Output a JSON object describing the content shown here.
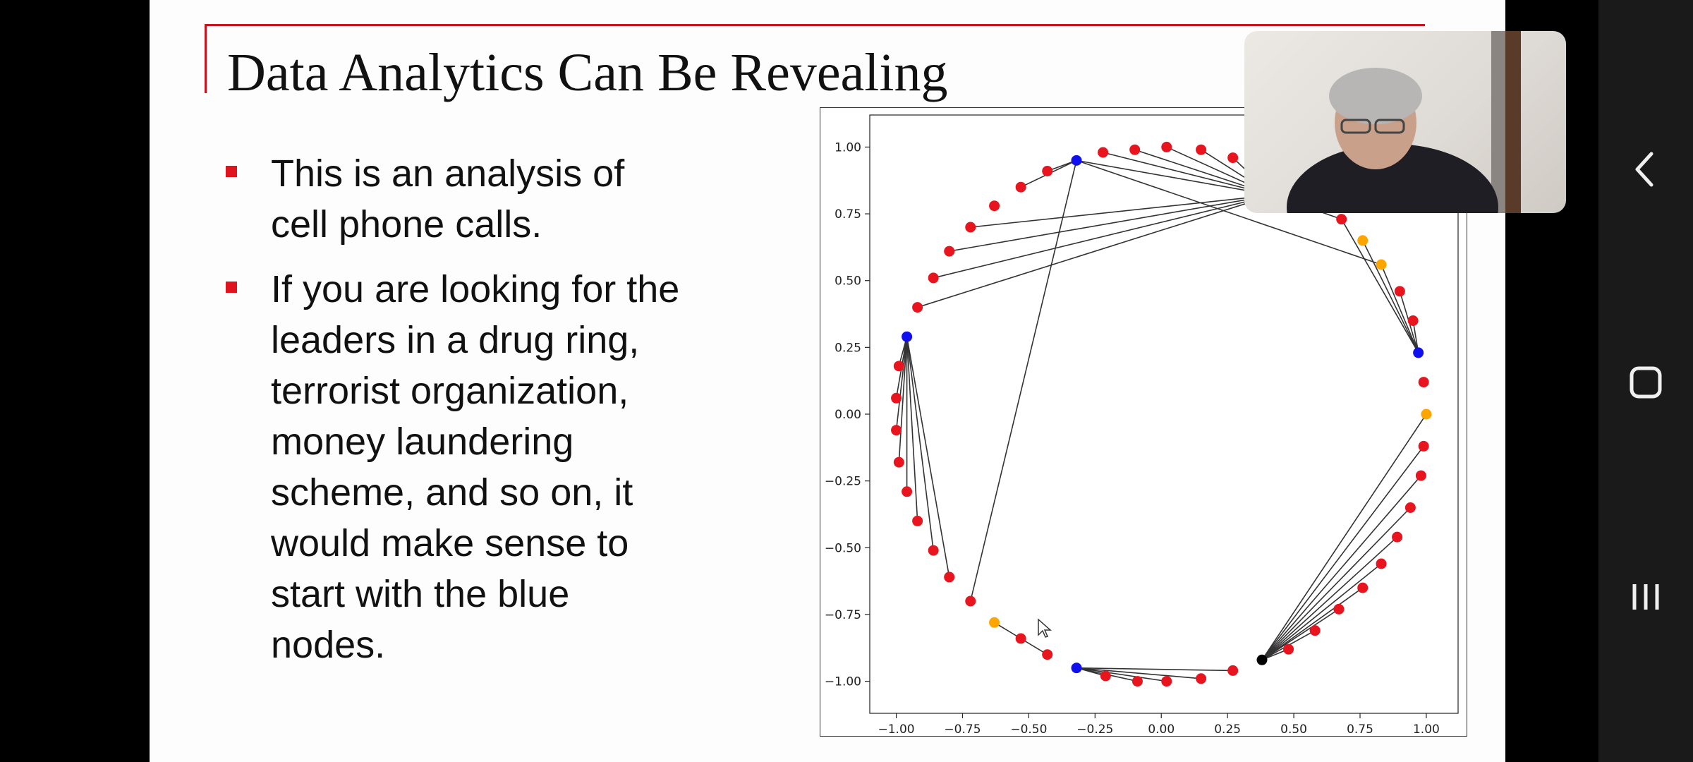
{
  "slide": {
    "title": "Data Analytics Can Be Revealing",
    "bullets": [
      {
        "text": "This is an analysis of\ncell phone calls."
      },
      {
        "text": "If you are looking for the\nleaders in a drug ring,\nterrorist organization,\nmoney laundering\nscheme, and so on, it\nwould make sense to\nstart with the blue\nnodes."
      }
    ],
    "accent_color": "#c8141e"
  },
  "chart_data": {
    "type": "scatter",
    "title": "",
    "xlabel": "",
    "ylabel": "",
    "xlim": [
      -1.1,
      1.12
    ],
    "ylim": [
      -1.12,
      1.12
    ],
    "xticks": [
      -1.0,
      -0.75,
      -0.5,
      -0.25,
      0.0,
      0.25,
      0.5,
      0.75,
      1.0
    ],
    "yticks": [
      -1.0,
      -0.75,
      -0.5,
      -0.25,
      0.0,
      0.25,
      0.5,
      0.75,
      1.0
    ],
    "xtick_labels": [
      "−1.00",
      "−0.75",
      "−0.50",
      "−0.25",
      "0.00",
      "0.25",
      "0.50",
      "0.75",
      "1.00"
    ],
    "ytick_labels": [
      "−1.00",
      "−0.75",
      "−0.50",
      "−0.25",
      "0.00",
      "0.25",
      "0.50",
      "0.75",
      "1.00"
    ],
    "grid": false,
    "node_colors": {
      "red": "#e8141e",
      "blue": "#1010ee",
      "orange": "#ffa500",
      "black": "#000000"
    },
    "nodes": [
      {
        "id": "r1",
        "x": -0.22,
        "y": 0.98,
        "color": "red"
      },
      {
        "id": "r2",
        "x": -0.1,
        "y": 0.99,
        "color": "red"
      },
      {
        "id": "r3",
        "x": 0.02,
        "y": 1.0,
        "color": "red"
      },
      {
        "id": "r4",
        "x": 0.15,
        "y": 0.99,
        "color": "red"
      },
      {
        "id": "r5",
        "x": 0.27,
        "y": 0.96,
        "color": "red"
      },
      {
        "id": "hub_tr",
        "x": 0.42,
        "y": 0.82,
        "color": "red"
      },
      {
        "id": "r6",
        "x": 0.68,
        "y": 0.73,
        "color": "red"
      },
      {
        "id": "o1",
        "x": 0.76,
        "y": 0.65,
        "color": "orange"
      },
      {
        "id": "o2",
        "x": 0.83,
        "y": 0.56,
        "color": "orange"
      },
      {
        "id": "r7",
        "x": 0.9,
        "y": 0.46,
        "color": "red"
      },
      {
        "id": "r8",
        "x": 0.95,
        "y": 0.35,
        "color": "red"
      },
      {
        "id": "b_right",
        "x": 0.97,
        "y": 0.23,
        "color": "blue"
      },
      {
        "id": "r9",
        "x": 0.99,
        "y": 0.12,
        "color": "red"
      },
      {
        "id": "o3",
        "x": 1.0,
        "y": 0.0,
        "color": "orange"
      },
      {
        "id": "r10",
        "x": 0.99,
        "y": -0.12,
        "color": "red"
      },
      {
        "id": "r11",
        "x": 0.98,
        "y": -0.23,
        "color": "red"
      },
      {
        "id": "r12",
        "x": 0.94,
        "y": -0.35,
        "color": "red"
      },
      {
        "id": "r13",
        "x": 0.89,
        "y": -0.46,
        "color": "red"
      },
      {
        "id": "r14",
        "x": 0.83,
        "y": -0.56,
        "color": "red"
      },
      {
        "id": "r15",
        "x": 0.76,
        "y": -0.65,
        "color": "red"
      },
      {
        "id": "r16",
        "x": 0.67,
        "y": -0.73,
        "color": "red"
      },
      {
        "id": "r17",
        "x": 0.58,
        "y": -0.81,
        "color": "red"
      },
      {
        "id": "r18",
        "x": 0.48,
        "y": -0.88,
        "color": "red"
      },
      {
        "id": "k1",
        "x": 0.38,
        "y": -0.92,
        "color": "black"
      },
      {
        "id": "r19",
        "x": 0.27,
        "y": -0.96,
        "color": "red"
      },
      {
        "id": "r20",
        "x": 0.15,
        "y": -0.99,
        "color": "red"
      },
      {
        "id": "r21",
        "x": 0.02,
        "y": -1.0,
        "color": "red"
      },
      {
        "id": "r22",
        "x": -0.09,
        "y": -1.0,
        "color": "red"
      },
      {
        "id": "r23",
        "x": -0.21,
        "y": -0.98,
        "color": "red"
      },
      {
        "id": "b_bottom",
        "x": -0.32,
        "y": -0.95,
        "color": "blue"
      },
      {
        "id": "r24",
        "x": -0.43,
        "y": -0.9,
        "color": "red"
      },
      {
        "id": "r25",
        "x": -0.53,
        "y": -0.84,
        "color": "red"
      },
      {
        "id": "o4",
        "x": -0.63,
        "y": -0.78,
        "color": "orange"
      },
      {
        "id": "r26",
        "x": -0.72,
        "y": -0.7,
        "color": "red"
      },
      {
        "id": "r27",
        "x": -0.8,
        "y": -0.61,
        "color": "red"
      },
      {
        "id": "r28",
        "x": -0.86,
        "y": -0.51,
        "color": "red"
      },
      {
        "id": "r29",
        "x": -0.92,
        "y": -0.4,
        "color": "red"
      },
      {
        "id": "r30",
        "x": -0.96,
        "y": -0.29,
        "color": "red"
      },
      {
        "id": "r31",
        "x": -0.99,
        "y": -0.18,
        "color": "red"
      },
      {
        "id": "r32",
        "x": -1.0,
        "y": -0.06,
        "color": "red"
      },
      {
        "id": "r33",
        "x": -1.0,
        "y": 0.06,
        "color": "red"
      },
      {
        "id": "r34",
        "x": -0.99,
        "y": 0.18,
        "color": "red"
      },
      {
        "id": "b_left",
        "x": -0.96,
        "y": 0.29,
        "color": "blue"
      },
      {
        "id": "r35",
        "x": -0.92,
        "y": 0.4,
        "color": "red"
      },
      {
        "id": "r36",
        "x": -0.86,
        "y": 0.51,
        "color": "red"
      },
      {
        "id": "r37",
        "x": -0.8,
        "y": 0.61,
        "color": "red"
      },
      {
        "id": "r38",
        "x": -0.72,
        "y": 0.7,
        "color": "red"
      },
      {
        "id": "r39",
        "x": -0.63,
        "y": 0.78,
        "color": "red"
      },
      {
        "id": "r40",
        "x": -0.53,
        "y": 0.85,
        "color": "red"
      },
      {
        "id": "r41",
        "x": -0.43,
        "y": 0.91,
        "color": "red"
      },
      {
        "id": "b_top",
        "x": -0.32,
        "y": 0.95,
        "color": "blue"
      }
    ],
    "edges": [
      [
        "b_top",
        "r41"
      ],
      [
        "b_top",
        "r40"
      ],
      [
        "b_top",
        "r26"
      ],
      [
        "b_top",
        "hub_tr"
      ],
      [
        "b_top",
        "o2"
      ],
      [
        "hub_tr",
        "r1"
      ],
      [
        "hub_tr",
        "r2"
      ],
      [
        "hub_tr",
        "r3"
      ],
      [
        "hub_tr",
        "r4"
      ],
      [
        "hub_tr",
        "r5"
      ],
      [
        "hub_tr",
        "r38"
      ],
      [
        "hub_tr",
        "r37"
      ],
      [
        "hub_tr",
        "r36"
      ],
      [
        "hub_tr",
        "r35"
      ],
      [
        "hub_tr",
        "r6"
      ],
      [
        "b_right",
        "r6"
      ],
      [
        "b_right",
        "o1"
      ],
      [
        "b_right",
        "o2"
      ],
      [
        "b_right",
        "r7"
      ],
      [
        "b_right",
        "r8"
      ],
      [
        "b_left",
        "r34"
      ],
      [
        "b_left",
        "r33"
      ],
      [
        "b_left",
        "r32"
      ],
      [
        "b_left",
        "r31"
      ],
      [
        "b_left",
        "r30"
      ],
      [
        "b_left",
        "r29"
      ],
      [
        "b_left",
        "r28"
      ],
      [
        "b_left",
        "r27"
      ],
      [
        "k1",
        "o3"
      ],
      [
        "k1",
        "r10"
      ],
      [
        "k1",
        "r11"
      ],
      [
        "k1",
        "r12"
      ],
      [
        "k1",
        "r13"
      ],
      [
        "k1",
        "r14"
      ],
      [
        "k1",
        "r15"
      ],
      [
        "k1",
        "r16"
      ],
      [
        "k1",
        "r17"
      ],
      [
        "k1",
        "r18"
      ],
      [
        "b_bottom",
        "r19"
      ],
      [
        "b_bottom",
        "r20"
      ],
      [
        "b_bottom",
        "r21"
      ],
      [
        "b_bottom",
        "r22"
      ],
      [
        "b_bottom",
        "r23"
      ],
      [
        "o4",
        "r25"
      ],
      [
        "r25",
        "r24"
      ]
    ]
  },
  "webcam": {
    "icon": "person-video-icon"
  },
  "nav": {
    "back_icon": "chevron-left-icon",
    "home_icon": "rounded-square-home-icon",
    "recents_icon": "three-bars-recents-icon"
  },
  "colors": {
    "nav_bg": "#1a1a1a",
    "page_bg": "#000000",
    "slide_bg": "#fdfdfd"
  }
}
